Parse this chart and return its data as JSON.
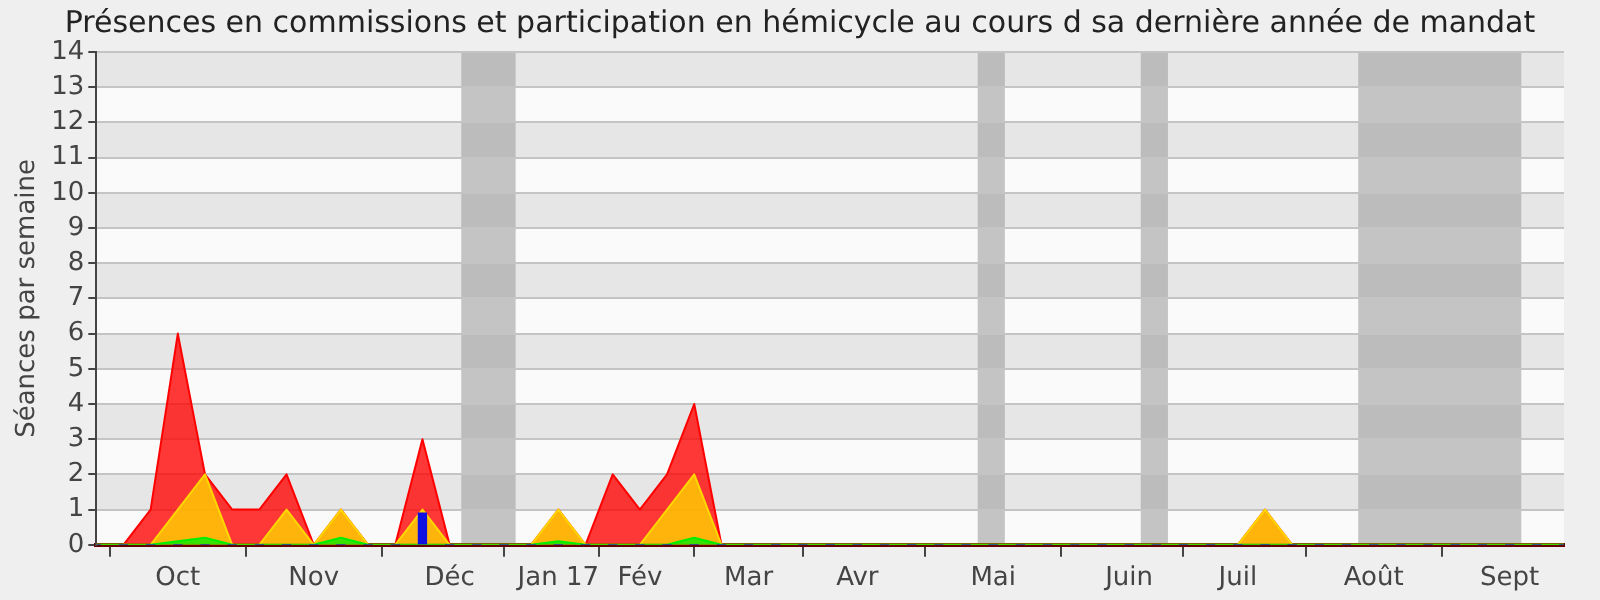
{
  "chart_data": {
    "type": "area",
    "title": "Présences en commissions et participation en hémicycle au cours d sa dernière année de mandat",
    "ylabel": "Séances par semaine",
    "x": [
      "2016-09-14",
      "2016-09-21",
      "2016-09-28",
      "2016-10-05",
      "2016-10-12",
      "2016-10-19",
      "2016-10-26",
      "2016-11-02",
      "2016-11-09",
      "2016-11-16",
      "2016-11-23",
      "2016-11-30",
      "2016-12-07",
      "2016-12-14",
      "2016-12-21",
      "2016-12-28",
      "2017-01-04",
      "2017-01-11",
      "2017-01-18",
      "2017-01-25",
      "2017-02-01",
      "2017-02-08",
      "2017-02-15",
      "2017-02-22",
      "2017-03-01",
      "2017-03-08",
      "2017-03-15",
      "2017-03-22",
      "2017-03-29",
      "2017-04-05",
      "2017-04-12",
      "2017-04-19",
      "2017-04-26",
      "2017-05-03",
      "2017-05-10",
      "2017-05-17",
      "2017-05-24",
      "2017-05-31",
      "2017-06-07",
      "2017-06-14",
      "2017-06-21",
      "2017-06-28",
      "2017-07-05",
      "2017-07-12",
      "2017-07-19",
      "2017-07-26",
      "2017-08-02",
      "2017-08-09",
      "2017-08-16",
      "2017-08-23",
      "2017-08-30",
      "2017-09-06",
      "2017-09-13",
      "2017-09-20",
      "2017-09-27"
    ],
    "series": [
      {
        "color": "#ff0000",
        "values": [
          0,
          0,
          1,
          6,
          2,
          1,
          1,
          2,
          0,
          1,
          0,
          0,
          3,
          0,
          0,
          0,
          0,
          1,
          0,
          2,
          1,
          2,
          4,
          0,
          0,
          0,
          0,
          0,
          0,
          0,
          0,
          0,
          0,
          0,
          0,
          0,
          0,
          0,
          0,
          0,
          0,
          0,
          0,
          1,
          0,
          0,
          0,
          0,
          0,
          0,
          0,
          0,
          0,
          0,
          0
        ]
      },
      {
        "color": "#ffd700",
        "values": [
          0,
          0,
          0,
          1,
          2,
          0,
          0,
          1,
          0,
          1,
          0,
          0,
          1,
          0,
          0,
          0,
          0,
          1,
          0,
          0,
          0,
          1,
          2,
          0,
          0,
          0,
          0,
          0,
          0,
          0,
          0,
          0,
          0,
          0,
          0,
          0,
          0,
          0,
          0,
          0,
          0,
          0,
          0,
          1,
          0,
          0,
          0,
          0,
          0,
          0,
          0,
          0,
          0,
          0,
          0
        ]
      },
      {
        "color": "#00ee00",
        "values": [
          0,
          0,
          0,
          0.1,
          0.2,
          0,
          0,
          0,
          0,
          0.2,
          0,
          0,
          0,
          0,
          0,
          0,
          0,
          0.1,
          0,
          0,
          0,
          0,
          0.2,
          0,
          0,
          0,
          0,
          0,
          0,
          0,
          0,
          0,
          0,
          0,
          0,
          0,
          0,
          0,
          0,
          0,
          0,
          0,
          0,
          0,
          0,
          0,
          0,
          0,
          0,
          0,
          0,
          0,
          0,
          0,
          0
        ]
      },
      {
        "type": "bar",
        "color": "#1010e0",
        "values": [
          0,
          0,
          0,
          0,
          0,
          0,
          0,
          0,
          0,
          0,
          0,
          0,
          0.9,
          0,
          0,
          0,
          0,
          0,
          0,
          0,
          0,
          0,
          0,
          0,
          0,
          0,
          0,
          0,
          0,
          0,
          0,
          0,
          0,
          0,
          0,
          0,
          0,
          0,
          0,
          0,
          0,
          0,
          0,
          0,
          0,
          0,
          0,
          0,
          0,
          0,
          0,
          0,
          0,
          0,
          0
        ]
      }
    ],
    "xlim": [
      "2016-09-14",
      "2017-09-27"
    ],
    "xticks": [
      {
        "value": "2016-10-05",
        "label": "Oct"
      },
      {
        "value": "2016-11-09",
        "label": "Nov"
      },
      {
        "value": "2016-12-14",
        "label": "Déc"
      },
      {
        "value": "2017-01-11",
        "label": "Jan 17"
      },
      {
        "value": "2017-02-01",
        "label": "Fév"
      },
      {
        "value": "2017-03-01",
        "label": "Mar"
      },
      {
        "value": "2017-03-29",
        "label": "Avr"
      },
      {
        "value": "2017-05-03",
        "label": "Mai"
      },
      {
        "value": "2017-06-07",
        "label": "Juin"
      },
      {
        "value": "2017-07-05",
        "label": "Juil"
      },
      {
        "value": "2017-08-09",
        "label": "Août"
      },
      {
        "value": "2017-09-13",
        "label": "Sept"
      }
    ],
    "ylim": [
      0,
      14
    ],
    "yticks": [
      0,
      1,
      2,
      3,
      4,
      5,
      6,
      7,
      8,
      9,
      10,
      11,
      12,
      13,
      14
    ],
    "bands": [
      {
        "axis": "x",
        "from": "2016-12-17",
        "to": "2016-12-31",
        "color": "#a0a0a0"
      },
      {
        "axis": "x",
        "from": "2017-04-29",
        "to": "2017-05-06",
        "color": "#a0a0a0"
      },
      {
        "axis": "x",
        "from": "2017-06-10",
        "to": "2017-06-17",
        "color": "#a0a0a0"
      },
      {
        "axis": "x",
        "from": "2017-08-05",
        "to": "2017-09-16",
        "color": "#a0a0a0"
      }
    ],
    "grid": "y",
    "legend": false
  }
}
